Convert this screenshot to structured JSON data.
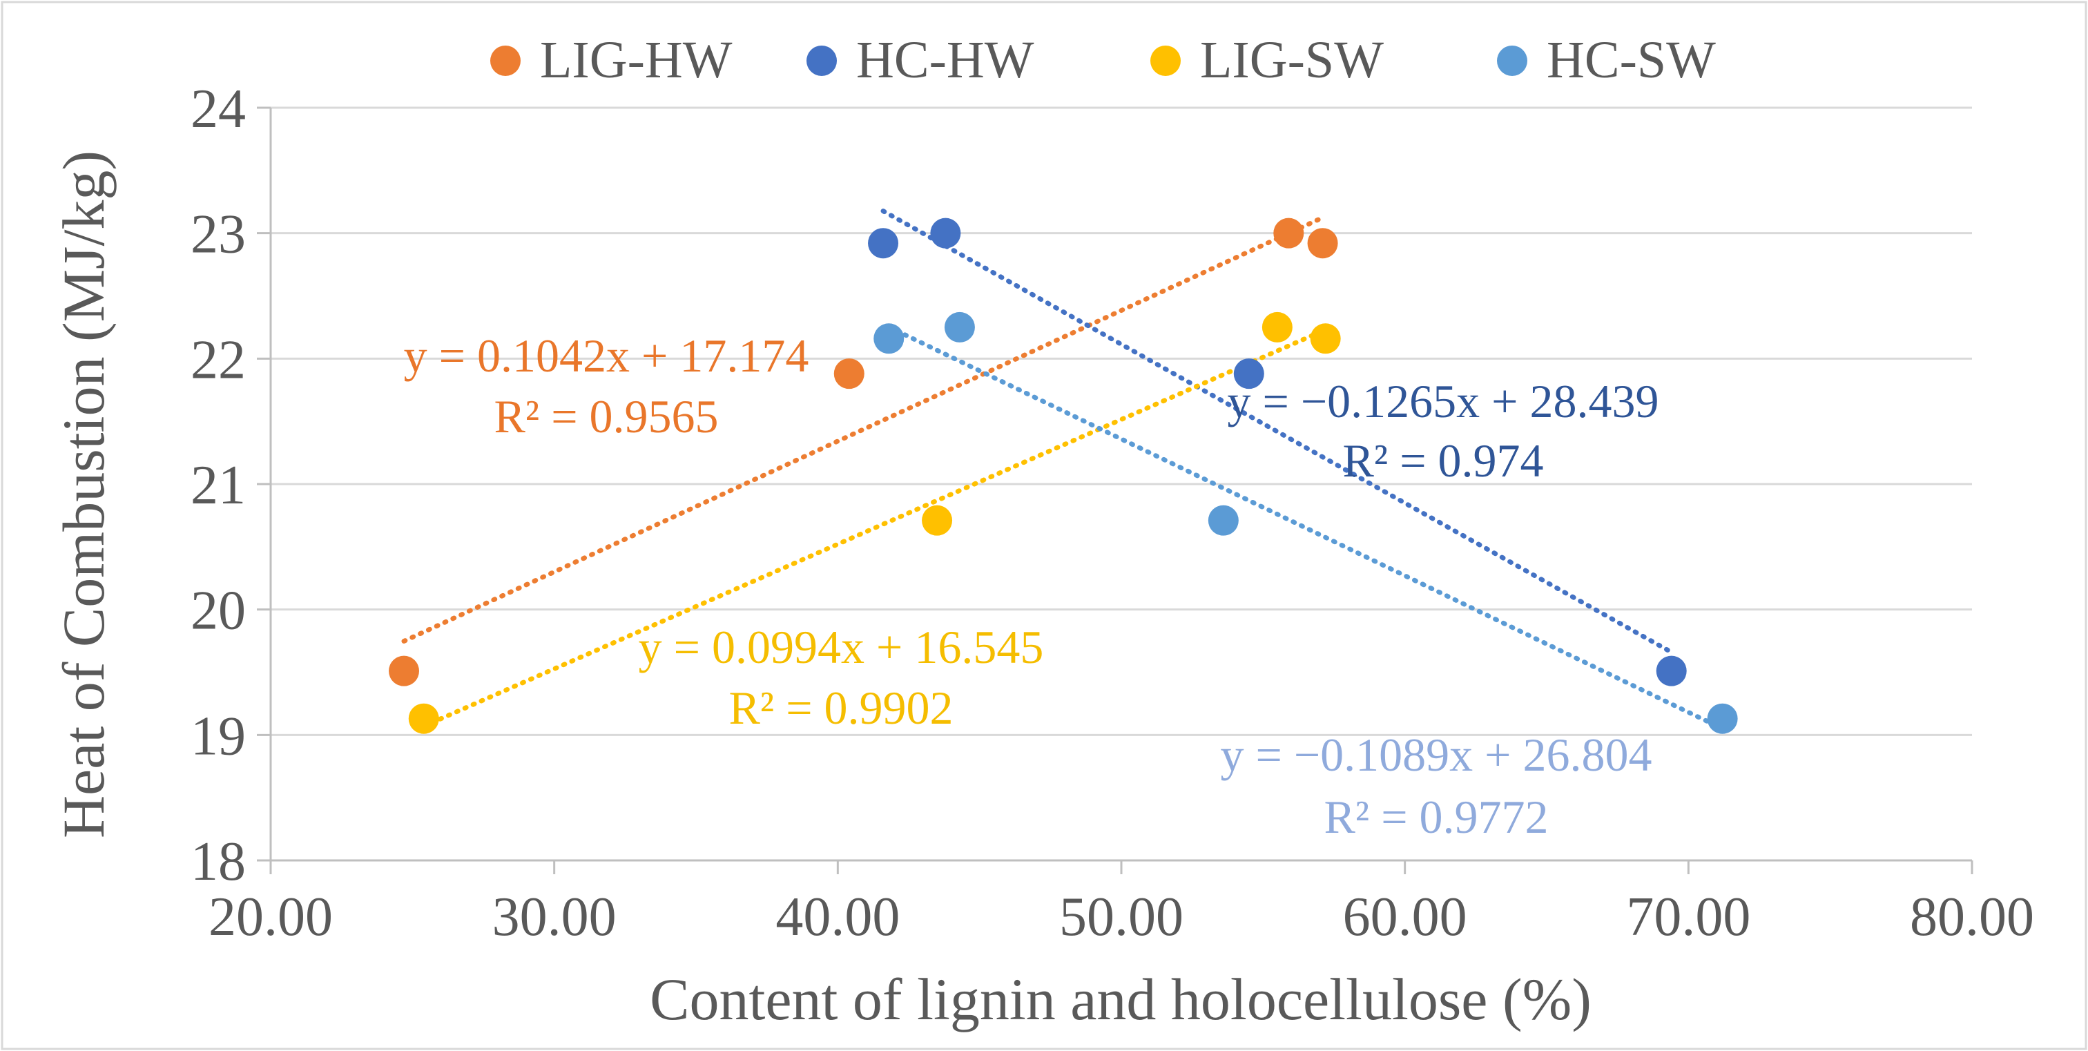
{
  "chart_data": {
    "type": "scatter",
    "title": "",
    "xlabel": "Content of lignin and holocellulose (%)",
    "ylabel": "Heat of Combustion (MJ/kg)",
    "xlim": [
      20,
      80
    ],
    "ylim": [
      18,
      24
    ],
    "x_ticks": [
      20,
      30,
      40,
      50,
      60,
      70,
      80
    ],
    "x_tick_labels": [
      "20.00",
      "30.00",
      "40.00",
      "50.00",
      "60.00",
      "70.00",
      "80.00"
    ],
    "y_ticks": [
      18,
      19,
      20,
      21,
      22,
      23,
      24
    ],
    "y_tick_labels": [
      "18",
      "19",
      "20",
      "21",
      "22",
      "23",
      "24"
    ],
    "grid": "horizontal",
    "legend_position": "top",
    "series": [
      {
        "name": "LIG-HW",
        "color": "#ED7D31",
        "label_color": "#E9762A",
        "points": [
          [
            24.7,
            19.51
          ],
          [
            40.4,
            21.88
          ],
          [
            55.9,
            23.0
          ],
          [
            57.1,
            22.92
          ]
        ],
        "trend": {
          "slope": 0.1042,
          "intercept": 17.174,
          "x_range": [
            24.7,
            57.1
          ]
        },
        "equation": "y = 0.1042x + 17.174",
        "r2": "R² = 0.9565"
      },
      {
        "name": "HC-HW",
        "color": "#4472C4",
        "label_color": "#2F5597",
        "points": [
          [
            41.6,
            22.92
          ],
          [
            43.8,
            23.0
          ],
          [
            54.5,
            21.88
          ],
          [
            69.4,
            19.51
          ]
        ],
        "trend": {
          "slope": -0.1265,
          "intercept": 28.439,
          "x_range": [
            41.6,
            69.4
          ]
        },
        "equation": "y = −0.1265x + 28.439",
        "r2": "R² = 0.974"
      },
      {
        "name": "LIG-SW",
        "color": "#FFC000",
        "label_color": "#F5BD00",
        "points": [
          [
            25.4,
            19.13
          ],
          [
            43.5,
            20.71
          ],
          [
            55.5,
            22.25
          ],
          [
            57.2,
            22.16
          ]
        ],
        "trend": {
          "slope": 0.0994,
          "intercept": 16.545,
          "x_range": [
            25.4,
            57.2
          ]
        },
        "equation": "y = 0.0994x + 16.545",
        "r2": "R² = 0.9902"
      },
      {
        "name": "HC-SW",
        "color": "#5B9BD5",
        "label_color": "#8FAADC",
        "points": [
          [
            41.8,
            22.16
          ],
          [
            44.3,
            22.25
          ],
          [
            53.6,
            20.71
          ],
          [
            71.2,
            19.13
          ]
        ],
        "trend": {
          "slope": -0.1089,
          "intercept": 26.804,
          "x_range": [
            41.8,
            71.2
          ]
        },
        "equation": "y = −0.1089x + 26.804",
        "r2": "R² = 0.9772"
      }
    ]
  }
}
